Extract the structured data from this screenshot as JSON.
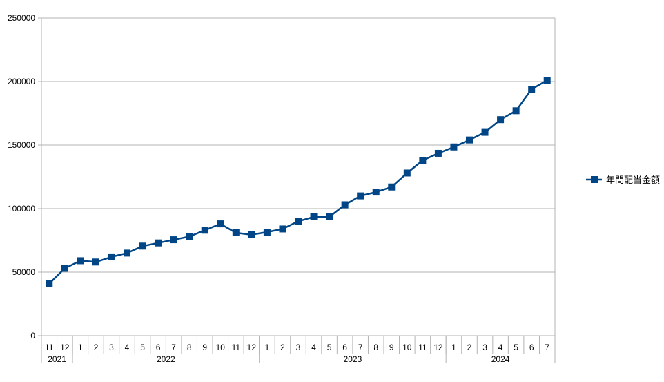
{
  "chart_data": {
    "type": "line",
    "title": "",
    "xlabel": "",
    "ylabel": "",
    "ylim": [
      0,
      250000
    ],
    "yticks": [
      0,
      50000,
      100000,
      150000,
      200000,
      250000
    ],
    "ytick_labels": [
      "0",
      "50000",
      "100000",
      "150000",
      "200000",
      "250000"
    ],
    "grid": true,
    "legend_position": "right",
    "x_months": [
      "11",
      "12",
      "1",
      "2",
      "3",
      "4",
      "5",
      "6",
      "7",
      "8",
      "9",
      "10",
      "11",
      "12",
      "1",
      "2",
      "3",
      "4",
      "5",
      "6",
      "7",
      "8",
      "9",
      "10",
      "11",
      "12",
      "1",
      "2",
      "3",
      "4",
      "5",
      "6",
      "7"
    ],
    "x_years": [
      {
        "label": "2021",
        "count": 2
      },
      {
        "label": "2022",
        "count": 12
      },
      {
        "label": "2023",
        "count": 12
      },
      {
        "label": "2024",
        "count": 7
      }
    ],
    "series": [
      {
        "name": "年間配当金額",
        "color": "#004586",
        "marker": "square",
        "values": [
          41000,
          53000,
          59000,
          58000,
          62000,
          65000,
          70500,
          73000,
          75500,
          78000,
          83000,
          88000,
          81000,
          79500,
          81500,
          84000,
          90000,
          93500,
          93500,
          103000,
          110000,
          113000,
          117000,
          128000,
          138000,
          143500,
          148500,
          154000,
          160000,
          170000,
          177000,
          194000,
          201000
        ]
      }
    ]
  }
}
